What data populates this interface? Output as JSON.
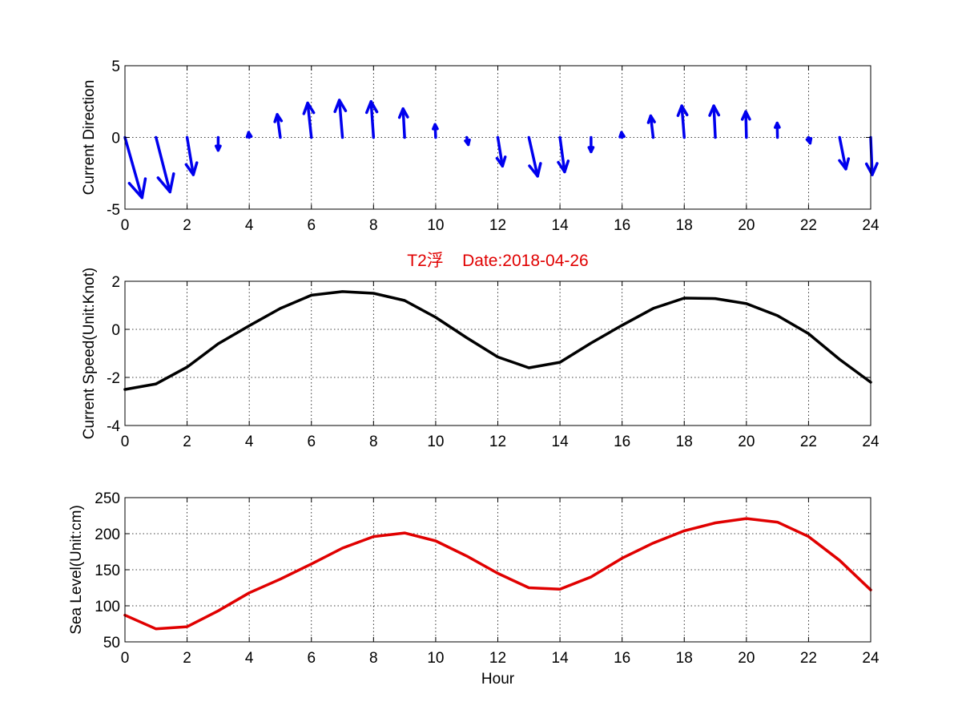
{
  "title": "T2浮    Date:2018-04-26",
  "colors": {
    "title": "#e00000",
    "direction": "#0000ee",
    "speed": "#000000",
    "level": "#e00000",
    "grid": "#000000"
  },
  "chart_data": [
    {
      "type": "quiver",
      "ylabel": "Current Direction",
      "xlabel": "",
      "xlim": [
        0,
        24
      ],
      "ylim": [
        -5,
        5
      ],
      "xticks": [
        "0",
        "2",
        "4",
        "6",
        "8",
        "10",
        "12",
        "14",
        "16",
        "18",
        "20",
        "22",
        "24"
      ],
      "yticks": [
        "-5",
        "0",
        "5"
      ],
      "grid": true,
      "vectors": [
        {
          "x": 0,
          "u": 0.55,
          "v": -4.2
        },
        {
          "x": 1,
          "u": 0.45,
          "v": -3.8
        },
        {
          "x": 2,
          "u": 0.2,
          "v": -2.6
        },
        {
          "x": 3,
          "u": 0.0,
          "v": -0.9
        },
        {
          "x": 4,
          "u": -0.02,
          "v": 0.35
        },
        {
          "x": 5,
          "u": -0.1,
          "v": 1.6
        },
        {
          "x": 6,
          "u": -0.12,
          "v": 2.4
        },
        {
          "x": 7,
          "u": -0.1,
          "v": 2.6
        },
        {
          "x": 8,
          "u": -0.08,
          "v": 2.5
        },
        {
          "x": 9,
          "u": -0.05,
          "v": 2.0
        },
        {
          "x": 10,
          "u": -0.02,
          "v": 0.9
        },
        {
          "x": 11,
          "u": 0.05,
          "v": -0.5
        },
        {
          "x": 12,
          "u": 0.15,
          "v": -2.0
        },
        {
          "x": 13,
          "u": 0.28,
          "v": -2.7
        },
        {
          "x": 14,
          "u": 0.15,
          "v": -2.4
        },
        {
          "x": 15,
          "u": 0.0,
          "v": -1.0
        },
        {
          "x": 16,
          "u": -0.02,
          "v": 0.35
        },
        {
          "x": 17,
          "u": -0.08,
          "v": 1.5
        },
        {
          "x": 18,
          "u": -0.08,
          "v": 2.2
        },
        {
          "x": 19,
          "u": -0.05,
          "v": 2.2
        },
        {
          "x": 20,
          "u": -0.02,
          "v": 1.8
        },
        {
          "x": 21,
          "u": -0.01,
          "v": 1.0
        },
        {
          "x": 22,
          "u": 0.05,
          "v": -0.4
        },
        {
          "x": 23,
          "u": 0.2,
          "v": -2.2
        },
        {
          "x": 24,
          "u": 0.05,
          "v": -2.6
        }
      ]
    },
    {
      "type": "line",
      "ylabel": "Current Speed(Unit:Knot)",
      "xlabel": "",
      "xlim": [
        0,
        24
      ],
      "ylim": [
        -4,
        2
      ],
      "xticks": [
        "0",
        "2",
        "4",
        "6",
        "8",
        "10",
        "12",
        "14",
        "16",
        "18",
        "20",
        "22",
        "24"
      ],
      "yticks": [
        "-4",
        "-2",
        "0",
        "2"
      ],
      "grid": true,
      "x": [
        0,
        1,
        2,
        3,
        4,
        5,
        6,
        7,
        8,
        9,
        10,
        11,
        12,
        13,
        14,
        15,
        16,
        17,
        18,
        19,
        20,
        21,
        22,
        23,
        24
      ],
      "values": [
        -2.5,
        -2.27,
        -1.57,
        -0.6,
        0.15,
        0.87,
        1.42,
        1.57,
        1.5,
        1.2,
        0.5,
        -0.35,
        -1.15,
        -1.6,
        -1.37,
        -0.57,
        0.17,
        0.87,
        1.3,
        1.28,
        1.07,
        0.57,
        -0.18,
        -1.25,
        -2.2
      ]
    },
    {
      "type": "line",
      "ylabel": "Sea Level(Unit:cm)",
      "xlabel": "Hour",
      "xlim": [
        0,
        24
      ],
      "ylim": [
        50,
        250
      ],
      "xticks": [
        "0",
        "2",
        "4",
        "6",
        "8",
        "10",
        "12",
        "14",
        "16",
        "18",
        "20",
        "22",
        "24"
      ],
      "yticks": [
        "50",
        "100",
        "150",
        "200",
        "250"
      ],
      "grid": true,
      "x": [
        0,
        1,
        2,
        3,
        4,
        5,
        6,
        7,
        8,
        9,
        10,
        11,
        12,
        13,
        14,
        15,
        16,
        17,
        18,
        19,
        20,
        21,
        22,
        23,
        24
      ],
      "values": [
        87,
        68,
        71,
        93,
        118,
        137,
        158,
        180,
        196,
        201,
        190,
        169,
        145,
        125,
        123,
        140,
        166,
        187,
        204,
        215,
        221,
        216,
        196,
        163,
        122
      ]
    }
  ]
}
